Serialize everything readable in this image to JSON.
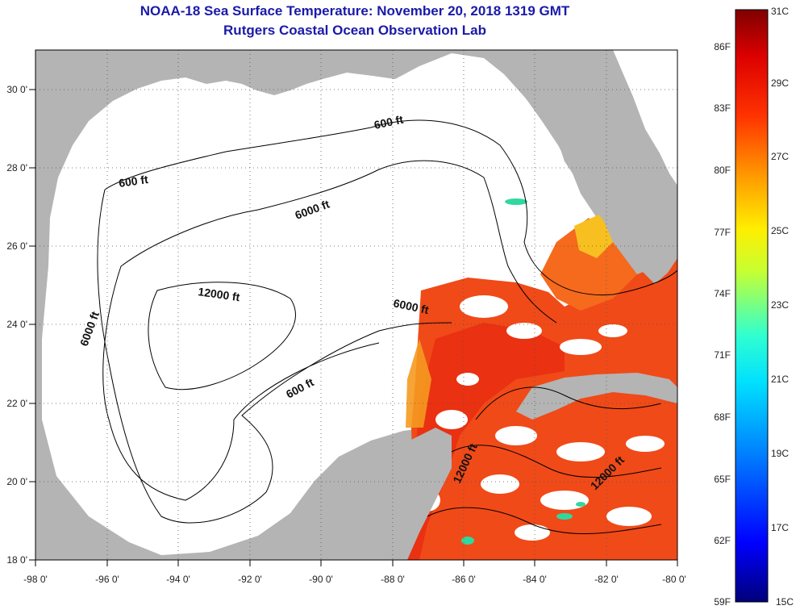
{
  "title": "NOAA-18 Sea Surface Temperature:  November 20, 2018 1319 GMT",
  "subtitle": "Rutgers Coastal Ocean Observation Lab",
  "map": {
    "lon_range": [
      -98,
      -80
    ],
    "lat_range": [
      18,
      31
    ],
    "lon_ticks": [
      "-98 0'",
      "-96 0'",
      "-94 0'",
      "-92 0'",
      "-90 0'",
      "-88 0'",
      "-86 0'",
      "-84 0'",
      "-82 0'",
      "-80 0'"
    ],
    "lat_ticks": [
      "18 0'",
      "20 0'",
      "22 0'",
      "24 0'",
      "26 0'",
      "28 0'",
      "30 0'"
    ],
    "colors": {
      "land": "#b4b4b4",
      "no_data": "#ffffff",
      "contour": "#000000",
      "grid": "#555555"
    },
    "contour_labels": [
      "600 ft",
      "600 ft",
      "600 ft",
      "6000 ft",
      "6000 ft",
      "6000 ft",
      "12000 ft",
      "12000 ft",
      "12000 ft"
    ]
  },
  "colorbar": {
    "celsius_labels": [
      "31C",
      "29C",
      "27C",
      "25C",
      "23C",
      "21C",
      "19C",
      "17C",
      "15C"
    ],
    "fahrenheit_labels": [
      "86F",
      "83F",
      "80F",
      "77F",
      "74F",
      "71F",
      "68F",
      "65F",
      "62F",
      "59F"
    ],
    "celsius_range": [
      15,
      31
    ],
    "colors": [
      "#00007a",
      "#0000ff",
      "#0080ff",
      "#00e0ff",
      "#30ffd0",
      "#c8ff30",
      "#ffee00",
      "#ff9900",
      "#ff3300",
      "#dd0000",
      "#800000"
    ]
  }
}
